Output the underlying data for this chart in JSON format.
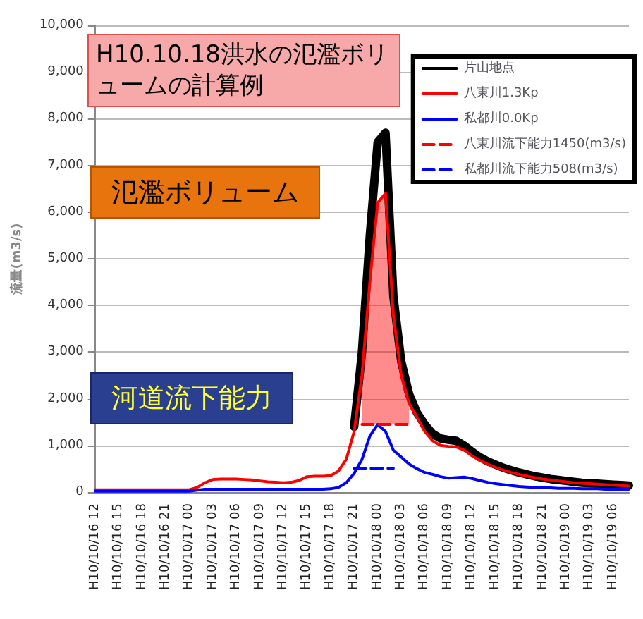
{
  "chart_data": {
    "type": "line",
    "title": "H10.10.18洪水の氾濫ボリュームの計算例",
    "ylabel": "流量(m3/s)",
    "categories": [
      "H10/10/16 12",
      null,
      null,
      "H10/10/16 15",
      null,
      null,
      "H10/10/16 18",
      null,
      null,
      "H10/10/16 21",
      null,
      null,
      "H10/10/17 00",
      null,
      null,
      "H10/10/17 03",
      null,
      null,
      "H10/10/17 06",
      null,
      null,
      "H10/10/17 09",
      null,
      null,
      "H10/10/17 12",
      null,
      null,
      "H10/10/17 15",
      null,
      null,
      "H10/10/17 18",
      null,
      null,
      "H10/10/17 21",
      null,
      null,
      "H10/10/18 00",
      null,
      null,
      "H10/10/18 03",
      null,
      null,
      "H10/10/18 06",
      null,
      null,
      "H10/10/18 09",
      null,
      null,
      "H10/10/18 12",
      null,
      null,
      "H10/10/18 15",
      null,
      null,
      "H10/10/18 18",
      null,
      null,
      "H10/10/18 21",
      null,
      null,
      "H10/10/19 00",
      null,
      null,
      "H10/10/19 03",
      null,
      null,
      "H10/10/19 06",
      null,
      null
    ],
    "series": [
      {
        "name": "片山地点",
        "color": "#000000",
        "values": [
          null,
          null,
          null,
          null,
          null,
          null,
          null,
          null,
          null,
          null,
          null,
          null,
          null,
          null,
          null,
          null,
          null,
          null,
          null,
          null,
          null,
          null,
          null,
          null,
          null,
          null,
          null,
          null,
          null,
          null,
          null,
          null,
          null,
          1400,
          3000,
          5500,
          7500,
          7700,
          4200,
          2800,
          2100,
          1700,
          1450,
          1250,
          1150,
          1120,
          1100,
          1000,
          870,
          750,
          660,
          590,
          520,
          470,
          420,
          380,
          340,
          310,
          280,
          260,
          240,
          220,
          200,
          190,
          180,
          170,
          160,
          150,
          140
        ]
      },
      {
        "name": "八東川1.3Kp",
        "color": "#ff0000",
        "values": [
          50,
          50,
          50,
          50,
          50,
          50,
          50,
          50,
          50,
          50,
          50,
          50,
          50,
          100,
          200,
          270,
          280,
          280,
          280,
          270,
          260,
          240,
          220,
          210,
          200,
          210,
          250,
          330,
          340,
          340,
          350,
          450,
          700,
          1300,
          2500,
          4500,
          6200,
          6400,
          3800,
          2500,
          1900,
          1600,
          1300,
          1100,
          1000,
          980,
          970,
          900,
          780,
          680,
          600,
          530,
          470,
          420,
          380,
          340,
          310,
          280,
          260,
          240,
          220,
          200,
          190,
          180,
          170,
          160,
          150,
          140,
          130
        ],
        "lower": [
          null,
          null,
          null,
          null,
          null,
          null,
          null,
          null,
          null,
          null,
          null,
          null,
          null,
          null,
          null,
          null,
          null,
          null,
          null,
          null,
          null,
          null,
          null,
          null,
          null,
          null,
          null,
          null,
          null,
          null,
          null,
          null,
          null,
          null,
          1450,
          1450,
          1450,
          1450,
          1450,
          1450,
          1450,
          null,
          null,
          null,
          null,
          null,
          null,
          null,
          null,
          null,
          null,
          null,
          null,
          null,
          null,
          null,
          null,
          null,
          null,
          null,
          null,
          null,
          null,
          null,
          null,
          null,
          null,
          null,
          null
        ],
        "upper": [
          null,
          null,
          null,
          null,
          null,
          null,
          null,
          null,
          null,
          null,
          null,
          null,
          null,
          null,
          null,
          null,
          null,
          null,
          null,
          null,
          null,
          null,
          null,
          null,
          null,
          null,
          null,
          null,
          null,
          null,
          null,
          null,
          null,
          null,
          2500,
          4500,
          6200,
          6400,
          3800,
          2500,
          1900,
          null,
          null,
          null,
          null,
          null,
          null,
          null,
          null,
          null,
          null,
          null,
          null,
          null,
          null,
          null,
          null,
          null,
          null,
          null,
          null,
          null,
          null,
          null,
          null,
          null,
          null,
          null,
          null
        ]
      },
      {
        "name": "私都川0.0Kp",
        "color": "#0000ff",
        "values": [
          20,
          20,
          20,
          20,
          20,
          20,
          20,
          20,
          20,
          20,
          20,
          20,
          20,
          40,
          60,
          60,
          60,
          60,
          60,
          60,
          60,
          60,
          60,
          60,
          60,
          60,
          60,
          60,
          60,
          60,
          70,
          100,
          200,
          400,
          700,
          1200,
          1450,
          1300,
          900,
          750,
          600,
          500,
          420,
          380,
          330,
          300,
          310,
          320,
          290,
          250,
          210,
          180,
          160,
          140,
          120,
          110,
          100,
          90,
          90,
          80,
          80,
          80,
          70,
          70,
          70,
          60,
          60,
          60,
          60
        ]
      },
      {
        "name": "八東川流下能力1450(m3/s)",
        "color": "#ff0000",
        "line_style": "dashed",
        "values": [
          null,
          null,
          null,
          null,
          null,
          null,
          null,
          null,
          null,
          null,
          null,
          null,
          null,
          null,
          null,
          null,
          null,
          null,
          null,
          null,
          null,
          null,
          null,
          null,
          null,
          null,
          null,
          null,
          null,
          null,
          null,
          null,
          null,
          null,
          1450,
          1450,
          1450,
          1450,
          1450,
          1450,
          1450,
          null,
          null,
          null,
          null,
          null,
          null,
          null,
          null,
          null,
          null,
          null,
          null,
          null,
          null,
          null,
          null,
          null,
          null,
          null,
          null,
          null,
          null,
          null,
          null,
          null,
          null,
          null,
          null
        ]
      },
      {
        "name": "私都川流下能力508(m3/s)",
        "color": "#0000ff",
        "line_style": "dashed",
        "values": [
          null,
          null,
          null,
          null,
          null,
          null,
          null,
          null,
          null,
          null,
          null,
          null,
          null,
          null,
          null,
          null,
          null,
          null,
          null,
          null,
          null,
          null,
          null,
          null,
          null,
          null,
          null,
          null,
          null,
          null,
          null,
          null,
          null,
          508,
          508,
          508,
          508,
          508,
          508,
          null,
          null,
          null,
          null,
          null,
          null,
          null,
          null,
          null,
          null,
          null,
          null,
          null,
          null,
          null,
          null,
          null,
          null,
          null,
          null,
          null,
          null,
          null,
          null,
          null,
          null,
          null,
          null,
          null,
          null
        ]
      }
    ],
    "ylim": [
      0,
      10000
    ],
    "yticks": [
      0,
      {
        "value": 1000,
        "label": "1,000"
      },
      {
        "value": 2000,
        "label": "2,000"
      },
      {
        "value": 3000,
        "label": "3,000"
      },
      {
        "value": 4000,
        "label": "4,000"
      },
      {
        "value": 5000,
        "label": "5,000"
      },
      {
        "value": 6000,
        "label": "6,000"
      },
      {
        "value": 7000,
        "label": "7,000"
      },
      {
        "value": 8000,
        "label": "8,000"
      },
      {
        "value": 9000,
        "label": "9,000"
      },
      {
        "value": 10000,
        "label": "10,000"
      }
    ],
    "grid": "y",
    "legend": "top right",
    "marker": "none",
    "annotations": [
      "氾濫ボリューム",
      "河道流下能力"
    ]
  }
}
